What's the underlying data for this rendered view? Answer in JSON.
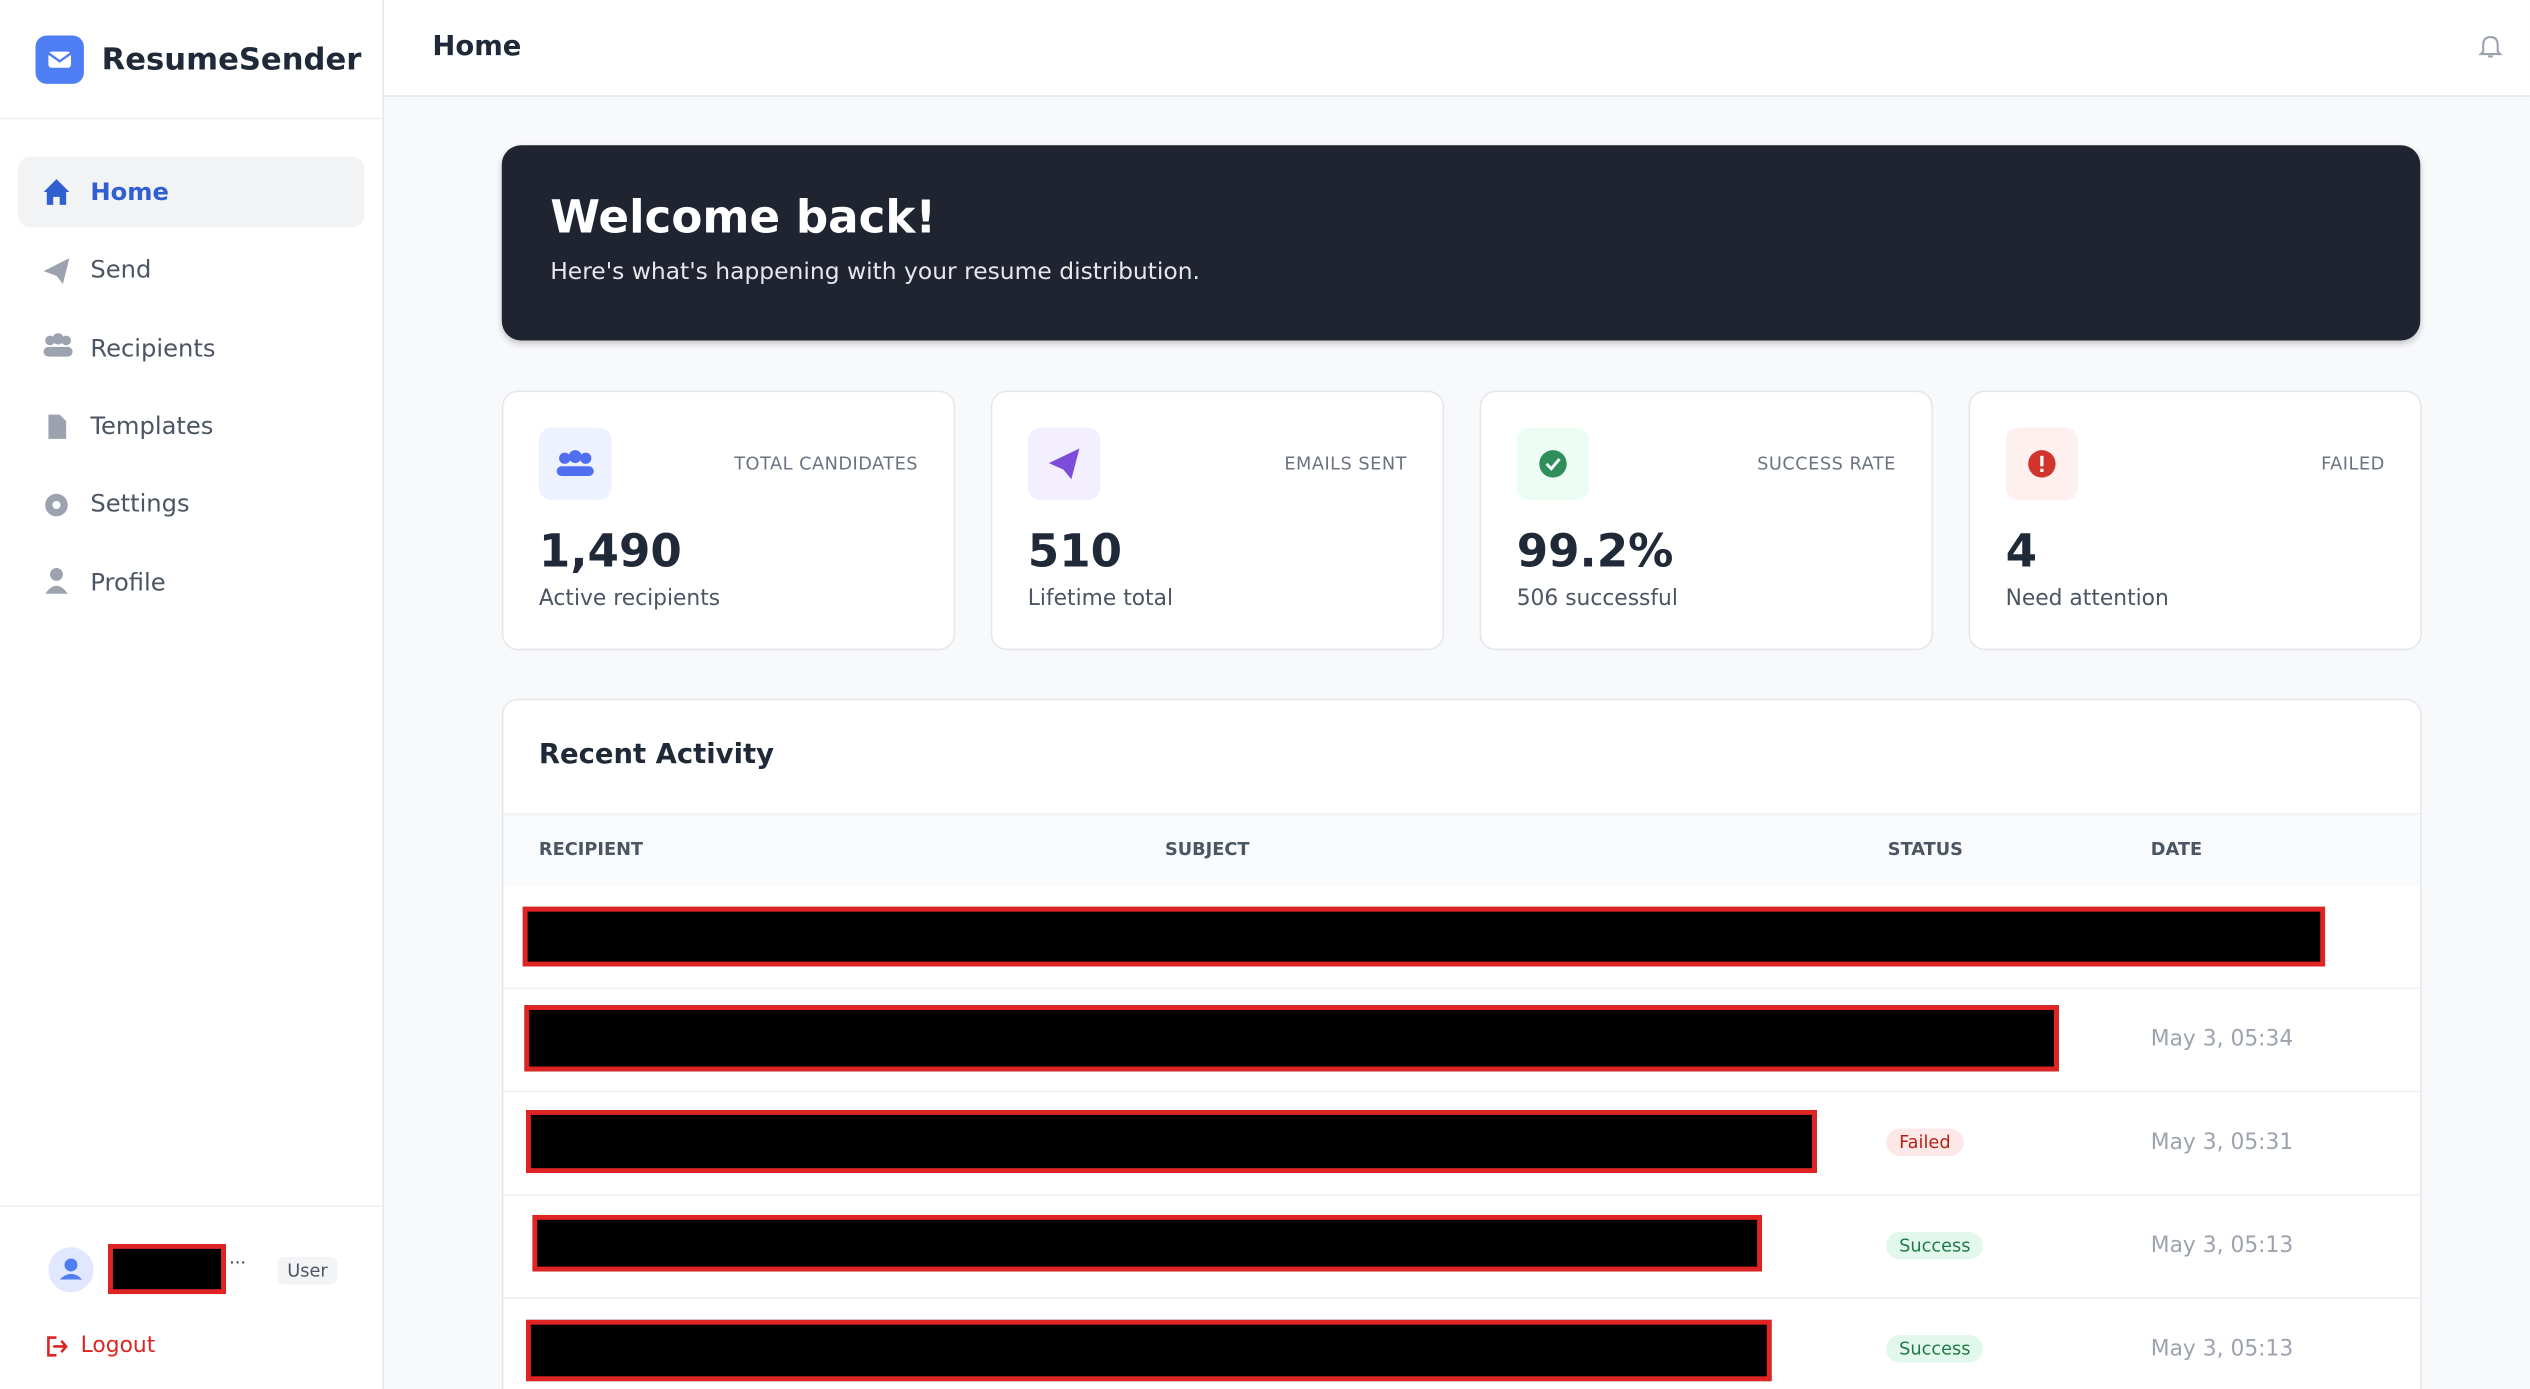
{
  "sidebar": {
    "brand": "ResumeSender",
    "nav": [
      "Home",
      "Send",
      "Recipients",
      "Templates",
      "Settings",
      "Profile"
    ],
    "user_suffix": "...",
    "user_role": "User",
    "logout": "Logout"
  },
  "header": {
    "title": "Home"
  },
  "banner": {
    "title": "Welcome back!",
    "subtitle": "Here's what's happening with your resume distribution."
  },
  "stats": [
    {
      "label": "TOTAL CANDIDATES",
      "value": "1,490",
      "caption": "Active recipients"
    },
    {
      "label": "EMAILS SENT",
      "value": "510",
      "caption": "Lifetime total"
    },
    {
      "label": "SUCCESS RATE",
      "value": "99.2%",
      "caption": "506 successful"
    },
    {
      "label": "FAILED",
      "value": "4",
      "caption": "Need attention"
    }
  ],
  "activity": {
    "title": "Recent Activity",
    "columns": [
      "RECIPIENT",
      "SUBJECT",
      "STATUS",
      "DATE"
    ],
    "rows": [
      {},
      {
        "date": "May 3, 05:34"
      },
      {
        "status": "Failed",
        "date": "May 3, 05:31"
      },
      {
        "status": "Success",
        "date": "May 3, 05:13"
      },
      {
        "status": "Success",
        "date": "May 3, 05:13"
      }
    ]
  }
}
